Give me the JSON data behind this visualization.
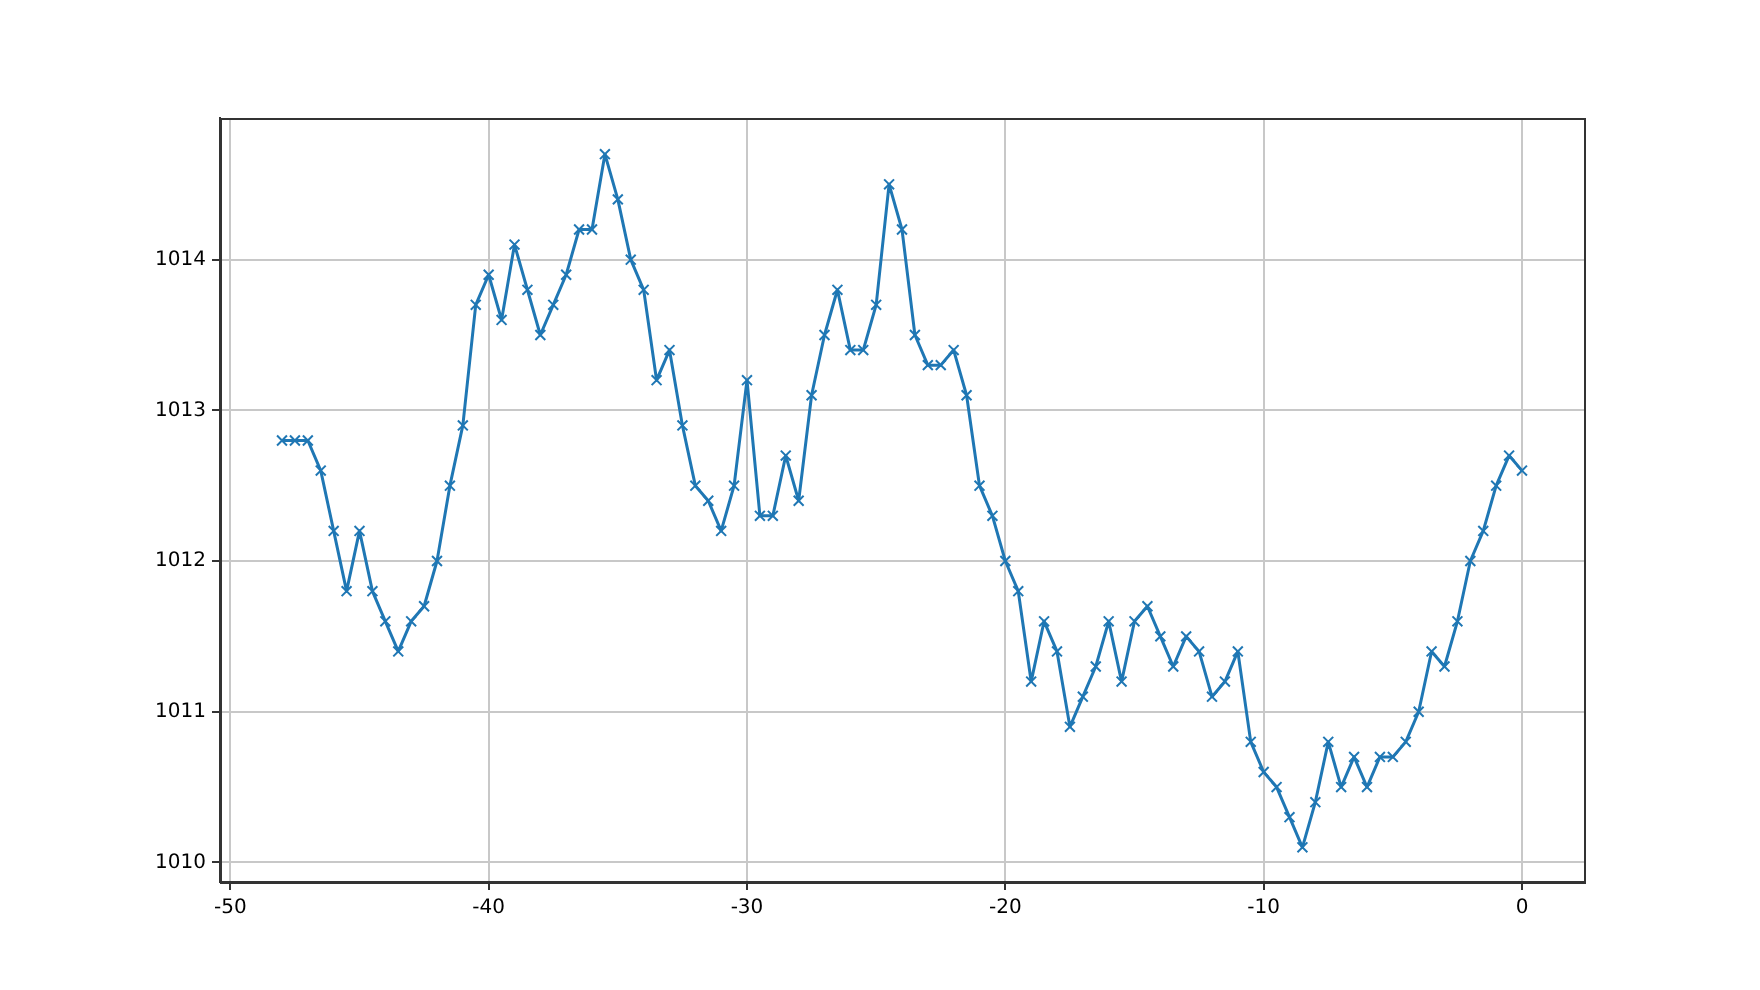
{
  "chart_data": {
    "type": "line",
    "x": [
      -48,
      -47.5,
      -47,
      -46.5,
      -46,
      -45.5,
      -45,
      -44.5,
      -44,
      -43.5,
      -43,
      -42.5,
      -42,
      -41.5,
      -41,
      -40.5,
      -40,
      -39.5,
      -39,
      -38.5,
      -38,
      -37.5,
      -37,
      -36.5,
      -36,
      -35.5,
      -35,
      -34.5,
      -34,
      -33.5,
      -33,
      -32.5,
      -32,
      -31.5,
      -31,
      -30.5,
      -30,
      -29.5,
      -29,
      -28.5,
      -28,
      -27.5,
      -27,
      -26.5,
      -26,
      -25.5,
      -25,
      -24.5,
      -24,
      -23.5,
      -23,
      -22.5,
      -22,
      -21.5,
      -21,
      -20.5,
      -20,
      -19.5,
      -19,
      -18.5,
      -18,
      -17.5,
      -17,
      -16.5,
      -16,
      -15.5,
      -15,
      -14.5,
      -14,
      -13.5,
      -13,
      -12.5,
      -12,
      -11.5,
      -11,
      -10.5,
      -10,
      -9.5,
      -9,
      -8.5,
      -8,
      -7.5,
      -7,
      -6.5,
      -6,
      -5.5,
      -5,
      -4.5,
      -4,
      -3.5,
      -3,
      -2.5,
      -2,
      -1.5,
      -1,
      -0.5,
      0
    ],
    "series": [
      {
        "color": "#1f77b4",
        "values": [
          1012.8,
          1012.8,
          1012.8,
          1012.6,
          1012.2,
          1011.8,
          1012.2,
          1011.8,
          1011.6,
          1011.4,
          1011.6,
          1011.7,
          1012.0,
          1012.5,
          1012.9,
          1013.7,
          1013.9,
          1013.6,
          1014.1,
          1013.8,
          1013.5,
          1013.7,
          1013.9,
          1014.2,
          1014.2,
          1014.7,
          1014.4,
          1014.0,
          1013.8,
          1013.2,
          1013.4,
          1012.9,
          1012.5,
          1012.4,
          1012.2,
          1012.5,
          1013.2,
          1012.3,
          1012.3,
          1012.7,
          1012.4,
          1013.1,
          1013.5,
          1013.8,
          1013.4,
          1013.4,
          1013.7,
          1014.5,
          1014.2,
          1013.5,
          1013.3,
          1013.3,
          1013.4,
          1013.1,
          1012.5,
          1012.3,
          1012.0,
          1011.8,
          1011.2,
          1011.6,
          1011.4,
          1010.9,
          1011.1,
          1011.3,
          1011.6,
          1011.2,
          1011.6,
          1011.7,
          1011.5,
          1011.3,
          1011.5,
          1011.4,
          1011.1,
          1011.2,
          1011.4,
          1010.8,
          1010.6,
          1010.5,
          1010.3,
          1010.1,
          1010.4,
          1010.8,
          1010.5,
          1010.7,
          1010.5,
          1010.7,
          1010.7,
          1010.8,
          1011.0,
          1011.4,
          1011.3,
          1011.6,
          1012.0,
          1012.2,
          1012.5,
          1012.7,
          1012.6
        ]
      }
    ],
    "xlim": [
      -50.4,
      2.4
    ],
    "xticks": [
      -50,
      -40,
      -30,
      -20,
      -10,
      0
    ],
    "ylim": [
      1009.87,
      1014.94
    ],
    "yticks": [
      1010,
      1011,
      1012,
      1013,
      1014
    ],
    "grid": true,
    "legend": false,
    "marker": "cross",
    "line_style": "solid"
  }
}
